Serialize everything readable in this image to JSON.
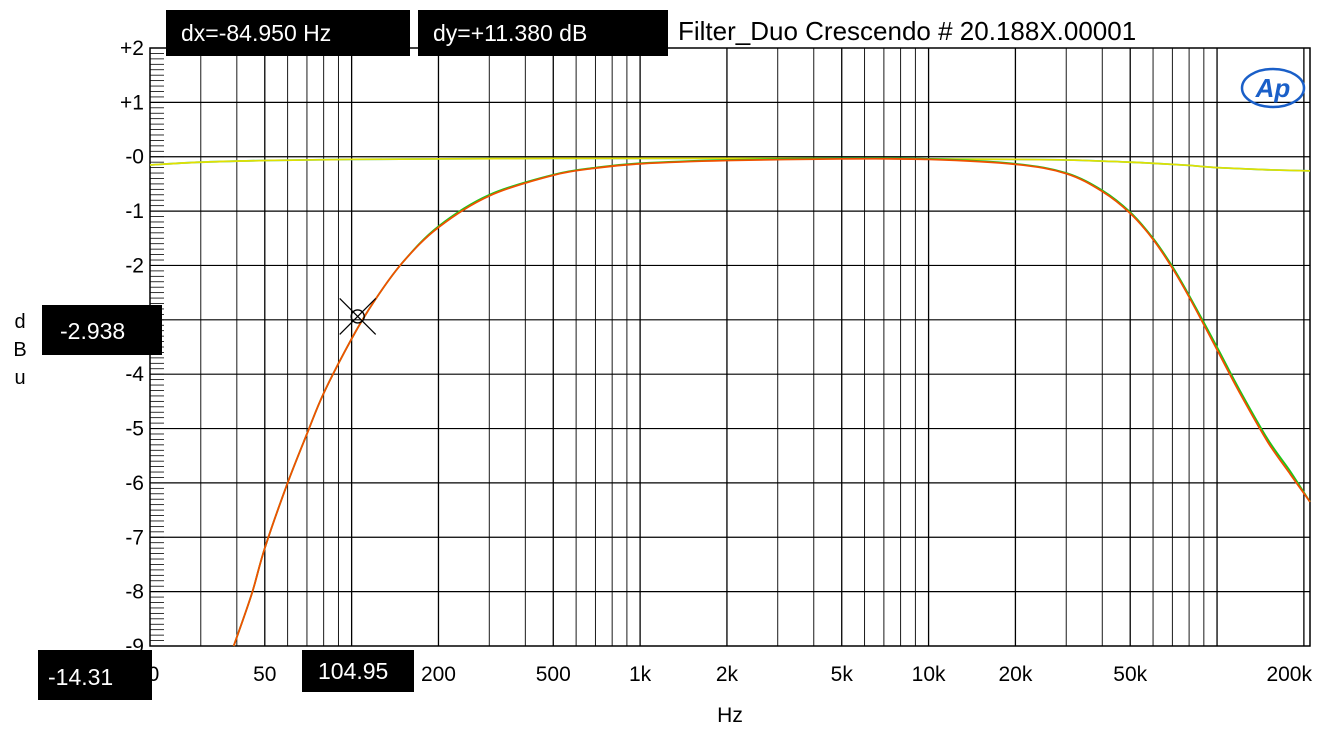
{
  "chart_data": {
    "type": "line",
    "title": "Filter_Duo Crescendo # 20.188X.00001",
    "xlabel": "Hz",
    "ylabel": "dBu",
    "xscale": "log",
    "xlim": [
      20,
      210000
    ],
    "ylim": [
      -9,
      2
    ],
    "grid": true,
    "x_ticks": [
      {
        "value": 20,
        "label": "20"
      },
      {
        "value": 50,
        "label": "50"
      },
      {
        "value": 200,
        "label": "200"
      },
      {
        "value": 500,
        "label": "500"
      },
      {
        "value": 1000,
        "label": "1k"
      },
      {
        "value": 2000,
        "label": "2k"
      },
      {
        "value": 5000,
        "label": "5k"
      },
      {
        "value": 10000,
        "label": "10k"
      },
      {
        "value": 20000,
        "label": "20k"
      },
      {
        "value": 50000,
        "label": "50k"
      },
      {
        "value": 200000,
        "label": "200k"
      }
    ],
    "y_ticks": [
      {
        "value": 2,
        "label": "+2"
      },
      {
        "value": 1,
        "label": "+1"
      },
      {
        "value": 0,
        "label": "-0"
      },
      {
        "value": -1,
        "label": "-1"
      },
      {
        "value": -2,
        "label": "-2"
      },
      {
        "value": -4,
        "label": "-4"
      },
      {
        "value": -5,
        "label": "-5"
      },
      {
        "value": -6,
        "label": "-6"
      },
      {
        "value": -7,
        "label": "-7"
      },
      {
        "value": -8,
        "label": "-8"
      },
      {
        "value": -9,
        "label": "-9"
      }
    ],
    "series": [
      {
        "color": "#00c8ff",
        "x": [
          20,
          30,
          50,
          100,
          200,
          500,
          1000,
          2000,
          5000,
          10000,
          20000,
          30000,
          40000,
          50000,
          60000,
          80000,
          100000,
          150000,
          210000
        ],
        "y": [
          -0.15,
          -0.1,
          -0.07,
          -0.05,
          -0.04,
          -0.03,
          -0.03,
          -0.03,
          -0.03,
          -0.04,
          -0.05,
          -0.06,
          -0.08,
          -0.1,
          -0.12,
          -0.16,
          -0.2,
          -0.24,
          -0.26
        ]
      },
      {
        "color": "#e0e000",
        "x": [
          20,
          30,
          50,
          100,
          200,
          500,
          1000,
          2000,
          5000,
          10000,
          20000,
          30000,
          40000,
          50000,
          60000,
          80000,
          100000,
          150000,
          210000
        ],
        "y": [
          -0.15,
          -0.1,
          -0.07,
          -0.05,
          -0.04,
          -0.03,
          -0.03,
          -0.03,
          -0.03,
          -0.04,
          -0.05,
          -0.06,
          -0.08,
          -0.1,
          -0.12,
          -0.16,
          -0.2,
          -0.24,
          -0.26
        ]
      },
      {
        "color": "#18c818",
        "x": [
          39,
          45,
          50,
          60,
          70,
          80,
          100,
          120,
          150,
          200,
          300,
          500,
          700,
          1000,
          2000,
          5000,
          10000,
          20000,
          30000,
          40000,
          50000,
          60000,
          70000,
          80000,
          100000,
          120000,
          150000,
          180000,
          210000
        ],
        "y": [
          -9.0,
          -8.05,
          -7.2,
          -6.0,
          -5.1,
          -4.35,
          -3.35,
          -2.65,
          -1.95,
          -1.28,
          -0.7,
          -0.33,
          -0.2,
          -0.12,
          -0.06,
          -0.03,
          -0.04,
          -0.13,
          -0.3,
          -0.62,
          -1.02,
          -1.5,
          -2.02,
          -2.55,
          -3.5,
          -4.3,
          -5.2,
          -5.8,
          -6.35
        ]
      },
      {
        "color": "#f05000",
        "x": [
          39,
          45,
          50,
          60,
          70,
          80,
          100,
          120,
          150,
          200,
          300,
          500,
          700,
          1000,
          2000,
          5000,
          10000,
          20000,
          30000,
          40000,
          50000,
          60000,
          70000,
          80000,
          100000,
          120000,
          150000,
          180000,
          210000
        ],
        "y": [
          -9.0,
          -8.05,
          -7.2,
          -6.0,
          -5.1,
          -4.35,
          -3.35,
          -2.65,
          -1.95,
          -1.3,
          -0.72,
          -0.34,
          -0.21,
          -0.13,
          -0.07,
          -0.04,
          -0.05,
          -0.14,
          -0.31,
          -0.64,
          -1.04,
          -1.52,
          -2.05,
          -2.58,
          -3.55,
          -4.35,
          -5.25,
          -5.85,
          -6.35
        ]
      }
    ],
    "cursor": {
      "x": 104.95,
      "y": -2.938
    }
  },
  "readouts": {
    "dx": "dx=-84.950  Hz",
    "dy": "dy=+11.380  dB",
    "y_cursor": "-2.938",
    "x_min": "-14.31",
    "x_cursor": "104.95"
  },
  "ylabel_chars": [
    "d",
    "B",
    "u"
  ],
  "logo": {
    "text": "AP",
    "color": "#1a5fc8"
  }
}
